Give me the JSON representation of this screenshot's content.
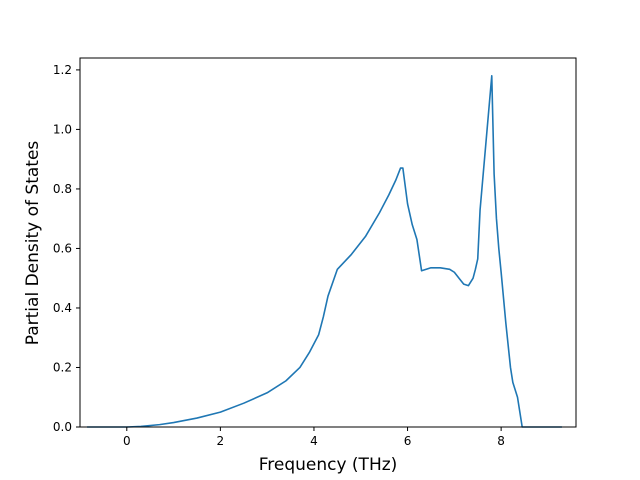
{
  "chart_data": {
    "type": "line",
    "title": "",
    "xlabel": "Frequency (THz)",
    "ylabel": "Partial Density of States",
    "xlim": [
      -1.0,
      9.6
    ],
    "ylim": [
      0.0,
      1.24
    ],
    "grid": false,
    "legend": "none",
    "x_ticks": [
      0,
      2,
      4,
      6,
      8
    ],
    "y_ticks": [
      0.0,
      0.2,
      0.4,
      0.6,
      0.8,
      1.0,
      1.2
    ],
    "x_tick_labels": [
      "0",
      "2",
      "4",
      "6",
      "8"
    ],
    "y_tick_labels": [
      "0.0",
      "0.2",
      "0.4",
      "0.6",
      "0.8",
      "1.0",
      "1.2"
    ],
    "series": [
      {
        "color": "#1f77b4",
        "x": [
          -0.85,
          -0.5,
          0.0,
          0.3,
          0.7,
          1.0,
          1.5,
          2.0,
          2.5,
          3.0,
          3.4,
          3.7,
          3.9,
          4.1,
          4.2,
          4.3,
          4.5,
          4.8,
          5.1,
          5.4,
          5.6,
          5.75,
          5.85,
          5.9,
          6.0,
          6.1,
          6.2,
          6.3,
          6.5,
          6.7,
          6.9,
          7.0,
          7.1,
          7.2,
          7.3,
          7.4,
          7.45,
          7.5,
          7.55,
          7.6,
          7.7,
          7.8,
          7.85,
          7.9,
          7.95,
          8.0,
          8.1,
          8.2,
          8.25,
          8.35,
          8.45,
          8.6,
          9.0,
          9.3
        ],
        "y": [
          0.0,
          0.0,
          0.0,
          0.002,
          0.008,
          0.015,
          0.03,
          0.05,
          0.08,
          0.115,
          0.155,
          0.2,
          0.25,
          0.31,
          0.37,
          0.44,
          0.53,
          0.58,
          0.64,
          0.72,
          0.78,
          0.83,
          0.87,
          0.87,
          0.75,
          0.68,
          0.63,
          0.525,
          0.535,
          0.535,
          0.53,
          0.52,
          0.5,
          0.48,
          0.475,
          0.5,
          0.53,
          0.565,
          0.73,
          0.82,
          1.0,
          1.18,
          0.85,
          0.7,
          0.6,
          0.52,
          0.35,
          0.2,
          0.15,
          0.1,
          0.0,
          0.0,
          0.0,
          0.0
        ]
      }
    ]
  }
}
